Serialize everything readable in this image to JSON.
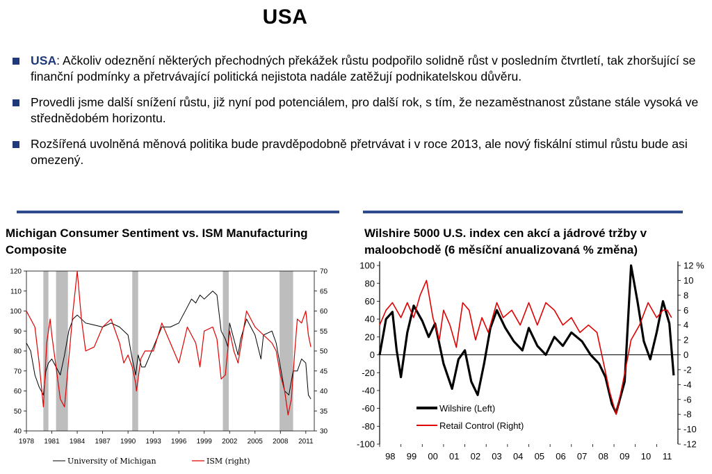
{
  "slide": {
    "title": "USA",
    "bullets": [
      {
        "lead": "USA",
        "text": ": Ačkoliv odeznění některých přechodných překážek růstu podpořilo solidně růst v posledním čtvrtletí, tak zhoršující se finanční podmínky a přetrvávající politická nejistota nadále zatěžují podnikatelskou důvěru."
      },
      {
        "lead": "",
        "text": "Provedli jsme další snížení růstu, již nyní pod potenciálem, pro další rok, s tím, že nezaměstnanost zůstane stále vysoká ve střednědobém horizontu."
      },
      {
        "lead": "",
        "text": "Rozšířená uvolněná měnová politika bude pravděpodobně přetrvávat i v roce 2013, ale nový fiskální stimul růstu bude asi omezený."
      }
    ],
    "accent_color": "#1f3a7a"
  },
  "chart_data": [
    {
      "type": "line",
      "title": "Michigan Consumer Sentiment vs. ISM Manufacturing Composite",
      "x_ticks": [
        "1978",
        "1981",
        "1984",
        "1987",
        "1990",
        "1993",
        "1996",
        "1999",
        "2002",
        "2005",
        "2008",
        "2011"
      ],
      "xlim": [
        1978,
        2012
      ],
      "y_left_ticks": [
        "40",
        "50",
        "60",
        "70",
        "80",
        "90",
        "100",
        "110",
        "120"
      ],
      "ylim_left": [
        40,
        120
      ],
      "y_right_ticks": [
        "30",
        "35",
        "40",
        "45",
        "50",
        "55",
        "60",
        "65",
        "70"
      ],
      "ylim_right": [
        30,
        70
      ],
      "recessions": [
        [
          1980.0,
          1980.6
        ],
        [
          1981.5,
          1982.9
        ],
        [
          1990.5,
          1991.2
        ],
        [
          2001.2,
          2001.9
        ],
        [
          2007.9,
          2009.5
        ]
      ],
      "legend": [
        "University of Michigan",
        "ISM (right)"
      ],
      "series": [
        {
          "name": "University of Michigan",
          "axis": "left",
          "color": "#000000",
          "x": [
            1978,
            1978.5,
            1979,
            1979.5,
            1980,
            1980.3,
            1980.6,
            1981,
            1981.5,
            1982,
            1982.5,
            1983,
            1983.5,
            1984,
            1985,
            1986,
            1987,
            1988,
            1989,
            1990,
            1990.5,
            1990.9,
            1991.2,
            1991.6,
            1992,
            1993,
            1994,
            1995,
            1996,
            1997,
            1997.5,
            1998,
            1998.5,
            1999,
            1999.5,
            2000,
            2000.5,
            2001,
            2001.5,
            2001.8,
            2002,
            2002.5,
            2003,
            2003.3,
            2004,
            2005,
            2005.7,
            2006,
            2007,
            2007.5,
            2008,
            2008.5,
            2009,
            2009.5,
            2010,
            2010.5,
            2011,
            2011.3,
            2011.6
          ],
          "y": [
            84,
            80,
            68,
            62,
            58,
            70,
            74,
            76,
            72,
            68,
            78,
            90,
            96,
            98,
            94,
            93,
            92,
            94,
            92,
            88,
            76,
            68,
            78,
            72,
            72,
            82,
            92,
            92,
            94,
            102,
            106,
            104,
            108,
            106,
            108,
            110,
            108,
            90,
            86,
            82,
            94,
            86,
            78,
            86,
            96,
            88,
            76,
            88,
            90,
            84,
            72,
            60,
            58,
            70,
            70,
            76,
            74,
            58,
            56
          ]
        },
        {
          "name": "ISM (right)",
          "axis": "right",
          "color": "#e00000",
          "x": [
            1978,
            1978.5,
            1979,
            1979.5,
            1980,
            1980.4,
            1980.8,
            1981,
            1981.5,
            1982,
            1982.5,
            1983,
            1983.5,
            1984,
            1984.5,
            1985,
            1986,
            1987,
            1988,
            1989,
            1989.5,
            1990,
            1990.5,
            1990.9,
            1991,
            1991.5,
            1992,
            1993,
            1994,
            1995,
            1996,
            1997,
            1998,
            1998.5,
            1999,
            2000,
            2000.5,
            2001,
            2001.5,
            2002,
            2002.5,
            2003,
            2004,
            2005,
            2006,
            2007,
            2007.5,
            2008,
            2008.5,
            2008.9,
            2009.3,
            2009.7,
            2010,
            2010.5,
            2011,
            2011.3,
            2011.6
          ],
          "y": [
            60,
            58,
            56,
            47,
            36,
            52,
            58,
            54,
            46,
            38,
            36,
            48,
            60,
            70,
            58,
            50,
            51,
            56,
            58,
            52,
            47,
            49,
            46,
            42,
            40,
            48,
            50,
            50,
            57,
            52,
            47,
            56,
            52,
            46,
            55,
            56,
            53,
            43,
            44,
            55,
            50,
            47,
            60,
            56,
            54,
            52,
            50,
            44,
            40,
            34,
            38,
            50,
            58,
            57,
            60,
            54,
            51
          ]
        }
      ]
    },
    {
      "type": "line",
      "title": "Wilshire 5000 U.S. index cen akcí a jádrové tržby v maloobchodě (6 měsíční anualizovaná % změna)",
      "x_ticks": [
        "98",
        "99",
        "00",
        "01",
        "02",
        "03",
        "04",
        "05",
        "06",
        "07",
        "08",
        "09",
        "10",
        "11"
      ],
      "xlim": [
        1998,
        2012
      ],
      "y_left_ticks": [
        "-100",
        "-80",
        "-60",
        "-40",
        "-20",
        "0",
        "20",
        "40",
        "60",
        "80",
        "100"
      ],
      "ylim_left": [
        -100,
        100
      ],
      "y_right_ticks": [
        "-12",
        "-10",
        "-8",
        "-6",
        "-4",
        "-2",
        "0",
        "2",
        "4",
        "6",
        "8",
        "10",
        "12"
      ],
      "ylim_right": [
        -12,
        12
      ],
      "right_tick_suffix_first": "%",
      "legend": [
        "Wilshire (Left)",
        "Retail Control (Right)"
      ],
      "series": [
        {
          "name": "Wilshire (Left)",
          "axis": "left",
          "color": "#000000",
          "x": [
            1998,
            1998.3,
            1998.6,
            1998.8,
            1999,
            1999.3,
            1999.6,
            2000,
            2000.3,
            2000.6,
            2001,
            2001.4,
            2001.7,
            2002,
            2002.3,
            2002.6,
            2002.9,
            2003.2,
            2003.5,
            2003.9,
            2004.3,
            2004.7,
            2005,
            2005.4,
            2005.8,
            2006.2,
            2006.6,
            2007,
            2007.5,
            2007.9,
            2008.3,
            2008.6,
            2008.9,
            2009.1,
            2009.5,
            2009.8,
            2010.1,
            2010.4,
            2010.7,
            2011,
            2011.3,
            2011.6,
            2011.8
          ],
          "y": [
            0,
            40,
            48,
            5,
            -25,
            25,
            55,
            38,
            20,
            35,
            -10,
            -38,
            -5,
            5,
            -30,
            -45,
            -10,
            30,
            50,
            30,
            15,
            5,
            30,
            10,
            0,
            20,
            10,
            25,
            15,
            0,
            -10,
            -25,
            -55,
            -65,
            -30,
            100,
            60,
            15,
            -5,
            25,
            60,
            35,
            -23
          ]
        },
        {
          "name": "Retail Control (Right)",
          "axis": "right",
          "color": "#e00000",
          "x": [
            1998,
            1998.3,
            1998.6,
            1999,
            1999.3,
            1999.6,
            1999.9,
            2000.2,
            2000.5,
            2000.8,
            2001,
            2001.3,
            2001.6,
            2001.9,
            2002.2,
            2002.5,
            2002.8,
            2003.1,
            2003.5,
            2003.8,
            2004.2,
            2004.6,
            2005,
            2005.4,
            2005.8,
            2006.2,
            2006.6,
            2007,
            2007.4,
            2007.8,
            2008.2,
            2008.5,
            2008.8,
            2009.1,
            2009.4,
            2009.8,
            2010.2,
            2010.6,
            2011,
            2011.3,
            2011.5,
            2011.7
          ],
          "y": [
            4,
            6,
            7,
            5,
            7,
            5,
            8,
            10,
            5,
            2,
            6,
            4,
            1,
            7,
            6,
            2,
            5,
            3,
            7,
            5,
            6,
            4,
            7,
            4,
            7,
            6,
            4,
            5,
            3,
            4,
            3,
            -1,
            -5,
            -8,
            -4,
            2,
            4,
            7,
            5,
            6,
            6,
            5
          ]
        }
      ]
    }
  ]
}
